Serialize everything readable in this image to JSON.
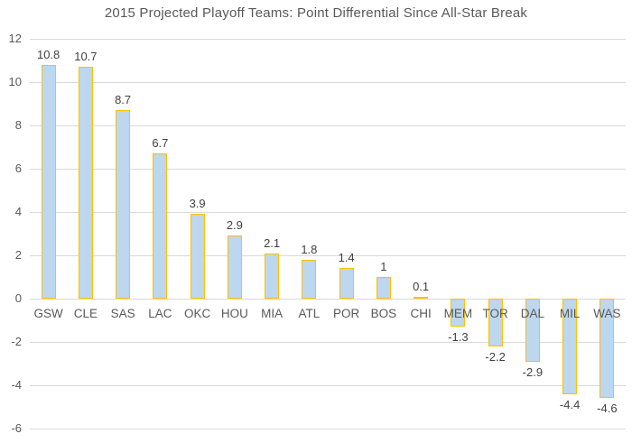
{
  "chart_data": {
    "type": "bar",
    "title": "2015 Projected Playoff Teams: Point Differential Since All-Star Break",
    "categories": [
      "GSW",
      "CLE",
      "SAS",
      "LAC",
      "OKC",
      "HOU",
      "MIA",
      "ATL",
      "POR",
      "BOS",
      "CHI",
      "MEM",
      "TOR",
      "DAL",
      "MIL",
      "WAS"
    ],
    "values": [
      10.8,
      10.7,
      8.7,
      6.7,
      3.9,
      2.9,
      2.1,
      1.8,
      1.4,
      1,
      0.1,
      -1.3,
      -2.2,
      -2.9,
      -4.4,
      -4.6
    ],
    "value_labels": [
      "10.8",
      "10.7",
      "8.7",
      "6.7",
      "3.9",
      "2.9",
      "2.1",
      "1.8",
      "1.4",
      "1",
      "0.1",
      "-1.3",
      "-2.2",
      "-2.9",
      "-4.4",
      "-4.6"
    ],
    "y_ticks": [
      12,
      10,
      8,
      6,
      4,
      2,
      0,
      -2,
      -4,
      -6
    ],
    "ylim": [
      -6,
      12
    ],
    "xlabel": "",
    "ylabel": "",
    "grid": true,
    "legend_position": "none",
    "colors": {
      "bar_fill": "#BDD7EE",
      "bar_border": "#FFC000",
      "gridline": "#D9D9D9",
      "axis_text": "#595959",
      "value_label_text": "#404040",
      "title_text": "#595959",
      "background": "#FFFFFF"
    }
  }
}
